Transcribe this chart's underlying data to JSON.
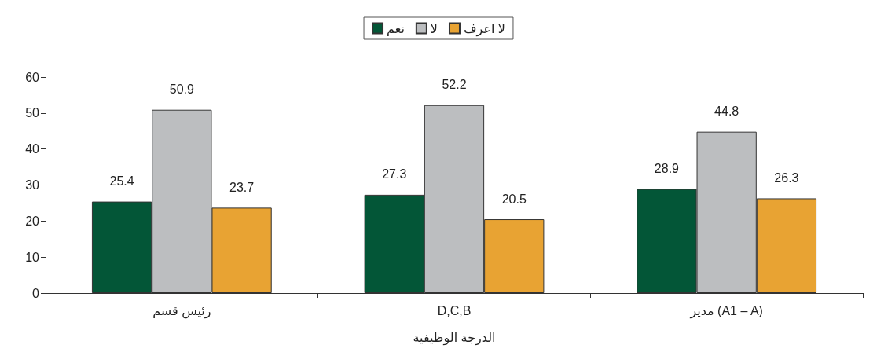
{
  "chart_data": {
    "type": "bar",
    "xlabel": "الدرجة الوظيفية",
    "categories": [
      "رئيس قسم",
      "D,C,B",
      "مدير (A1 – A)"
    ],
    "series": [
      {
        "name": "نعم",
        "color": "#035637",
        "values": [
          25.4,
          27.3,
          28.9
        ]
      },
      {
        "name": "لا",
        "color": "#bcbec0",
        "values": [
          50.9,
          52.2,
          44.8
        ]
      },
      {
        "name": "لا اعرف",
        "color": "#e8a333",
        "values": [
          23.7,
          20.5,
          26.3
        ]
      }
    ],
    "ylim": [
      0,
      60
    ],
    "yticks": [
      0,
      10,
      20,
      30,
      40,
      50,
      60
    ],
    "grid": false,
    "legend": "top",
    "data_labels": true
  }
}
